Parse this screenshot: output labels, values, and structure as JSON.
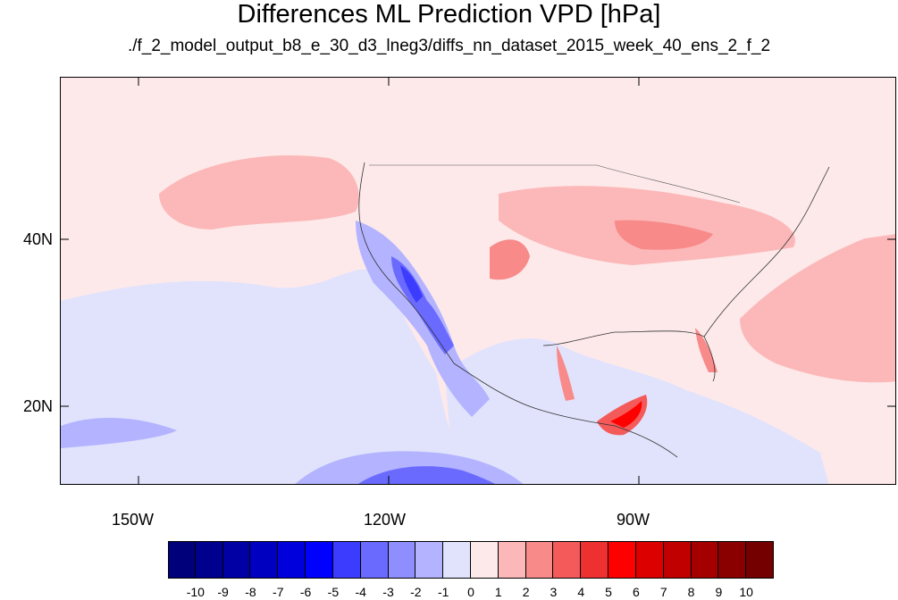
{
  "title": "Differences ML Prediction VPD [hPa]",
  "subtitle": "./f_2_model_output_b8_e_30_d3_lneg3/diffs_nn_dataset_2015_week_40_ens_2_f_2",
  "y_axis": {
    "labels": [
      "40N",
      "20N"
    ]
  },
  "x_axis": {
    "labels": [
      "150W",
      "120W",
      "90W"
    ]
  },
  "colorbar": {
    "labels": [
      "-10",
      "-9",
      "-8",
      "-7",
      "-6",
      "-5",
      "-4",
      "-3",
      "-2",
      "-1",
      "0",
      "1",
      "2",
      "3",
      "4",
      "5",
      "6",
      "7",
      "8",
      "9",
      "10"
    ],
    "colors": [
      "#00007a",
      "#00008f",
      "#0000a5",
      "#0000c0",
      "#0000dd",
      "#0000ff",
      "#3c3cff",
      "#6a6aff",
      "#8e8eff",
      "#b3b3ff",
      "#e1e3fc",
      "#fde9ea",
      "#fcb8b8",
      "#f88a8a",
      "#f45a5a",
      "#ee3030",
      "#ff0000",
      "#dc0000",
      "#c00000",
      "#a50000",
      "#8a0000",
      "#750000"
    ]
  }
}
